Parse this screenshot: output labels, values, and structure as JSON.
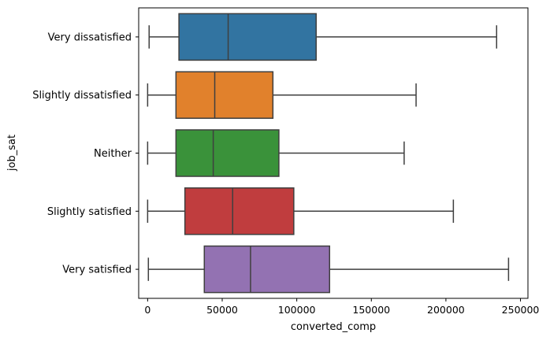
{
  "chart_data": {
    "type": "boxplot",
    "orientation": "horizontal",
    "xlabel": "converted_comp",
    "ylabel": "job_sat",
    "xlim": [
      -6000,
      255000
    ],
    "xticks": [
      0,
      50000,
      100000,
      150000,
      200000,
      250000
    ],
    "xtick_labels": [
      "0",
      "50000",
      "100000",
      "150000",
      "200000",
      "250000"
    ],
    "grid": false,
    "legend": "none",
    "categories": [
      "Very dissatisfied",
      "Slightly dissatisfied",
      "Neither",
      "Slightly satisfied",
      "Very satisfied"
    ],
    "boxes": [
      {
        "category": "Very dissatisfied",
        "whisker_low": 1000,
        "q1": 21000,
        "median": 54000,
        "q3": 113000,
        "whisker_high": 234000,
        "color": "#3274a1"
      },
      {
        "category": "Slightly dissatisfied",
        "whisker_low": 0,
        "q1": 19000,
        "median": 45000,
        "q3": 84000,
        "whisker_high": 180000,
        "color": "#e1812c"
      },
      {
        "category": "Neither",
        "whisker_low": 0,
        "q1": 19000,
        "median": 44000,
        "q3": 88000,
        "whisker_high": 172000,
        "color": "#3a923a"
      },
      {
        "category": "Slightly satisfied",
        "whisker_low": 0,
        "q1": 25000,
        "median": 57000,
        "q3": 98000,
        "whisker_high": 205000,
        "color": "#c03d3e"
      },
      {
        "category": "Very satisfied",
        "whisker_low": 500,
        "q1": 38000,
        "median": 69000,
        "q3": 122000,
        "whisker_high": 242000,
        "color": "#9372b2"
      }
    ]
  }
}
